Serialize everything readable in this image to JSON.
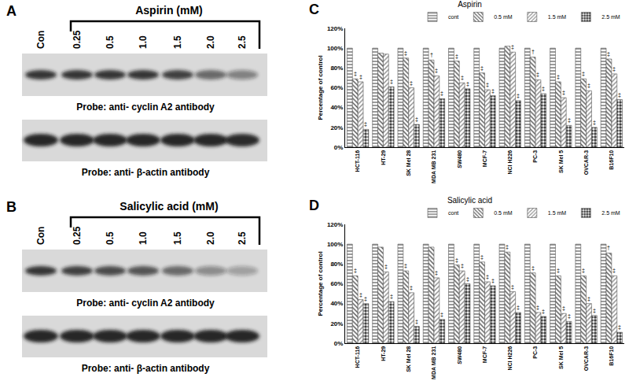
{
  "blots": [
    {
      "panel": "A",
      "title": "Aspirin (mM)",
      "lanes": [
        "Con",
        "0.25",
        "0.5",
        "1.0",
        "1.5",
        "2.0",
        "2.5"
      ],
      "probes": [
        {
          "label": "Probe: anti- cyclin A2 antibody",
          "band_intensity": [
            0.85,
            0.85,
            0.85,
            0.85,
            0.8,
            0.6,
            0.45
          ]
        },
        {
          "label": "Probe: anti- β-actin antibody",
          "band_intensity": [
            0.95,
            0.95,
            0.95,
            0.95,
            0.95,
            0.95,
            0.9
          ]
        }
      ]
    },
    {
      "panel": "B",
      "title": "Salicylic acid  (mM)",
      "lanes": [
        "Con",
        "0.25",
        "0.5",
        "1.0",
        "1.5",
        "2.0",
        "2.5"
      ],
      "probes": [
        {
          "label": "Probe: anti- cyclin A2 antibody",
          "band_intensity": [
            0.85,
            0.8,
            0.75,
            0.7,
            0.6,
            0.4,
            0.3
          ]
        },
        {
          "label": "Probe: anti- β-actin antibody",
          "band_intensity": [
            0.95,
            0.95,
            0.95,
            0.95,
            0.95,
            0.95,
            0.95
          ]
        }
      ]
    }
  ],
  "chart_data": [
    {
      "panel": "C",
      "type": "bar",
      "title": "Aspirin",
      "y_label": "Percentage of control",
      "legend": "top right",
      "categories": [
        "HCT-116",
        "HT-29",
        "SK Mel 28",
        "MDA MB 231",
        "SW480",
        "MCF-7",
        "NCI H226",
        "PC-3",
        "SK Mel 5",
        "OVCAR-3",
        "B16F10"
      ],
      "ylim": [
        0,
        120
      ],
      "yticks": [
        {
          "value": 0,
          "label": "0%"
        },
        {
          "value": 20,
          "label": "20%"
        },
        {
          "value": 40,
          "label": "40%"
        },
        {
          "value": 60,
          "label": "60%"
        },
        {
          "value": 80,
          "label": "80%"
        },
        {
          "value": 100,
          "label": "100%"
        },
        {
          "value": 120,
          "label": "120%"
        }
      ],
      "series": [
        {
          "name": "cont",
          "color": "#707070",
          "marker": "horizontal",
          "values": [
            100,
            100,
            100,
            100,
            100,
            100,
            100,
            100,
            100,
            100,
            100
          ],
          "annotations": [
            null,
            null,
            null,
            null,
            null,
            null,
            null,
            null,
            null,
            null,
            null
          ]
        },
        {
          "name": "0.5 mM",
          "color": "#505050",
          "marker": "backslash",
          "values": [
            69,
            95,
            90,
            88,
            87,
            75,
            102,
            91,
            66,
            69,
            89
          ],
          "annotations": [
            "‡",
            null,
            "‡",
            "†",
            "‡",
            "‡",
            null,
            "†",
            "‡",
            "‡",
            "‡"
          ]
        },
        {
          "name": "1.5 mM",
          "color": "#8a8a8a",
          "marker": "slash",
          "values": [
            66,
            94,
            60,
            72,
            65,
            58,
            96,
            68,
            50,
            57,
            74
          ],
          "annotations": [
            "‡",
            null,
            "‡",
            "‡",
            "‡",
            "‡",
            "‡",
            "‡",
            "‡",
            "‡",
            "‡"
          ]
        },
        {
          "name": "2.5 mM",
          "color": "#404040",
          "marker": "dots",
          "values": [
            18,
            61,
            23,
            49,
            59,
            52,
            47,
            54,
            22,
            20,
            48
          ],
          "annotations": [
            "‡",
            "‡",
            "‡",
            "‡",
            "‡",
            "‡",
            "‡",
            "‡",
            "‡",
            "‡",
            "‡"
          ]
        }
      ]
    },
    {
      "panel": "D",
      "type": "bar",
      "title": "Salicylic acid",
      "y_label": "Percentage of control",
      "legend": "top right",
      "categories": [
        "HCT-116",
        "HT-29",
        "SK Mel 28",
        "MDA MB 231",
        "SW480",
        "MCF-7",
        "NCI H226",
        "PC-3",
        "SK Mel 5",
        "OVCAR-3",
        "B16F10"
      ],
      "ylim": [
        0,
        120
      ],
      "yticks": [
        {
          "value": 0,
          "label": "0%"
        },
        {
          "value": 20,
          "label": "20%"
        },
        {
          "value": 40,
          "label": "40%"
        },
        {
          "value": 60,
          "label": "60%"
        },
        {
          "value": 80,
          "label": "80%"
        },
        {
          "value": 100,
          "label": "100%"
        },
        {
          "value": 120,
          "label": "120%"
        }
      ],
      "series": [
        {
          "name": "cont",
          "color": "#707070",
          "marker": "horizontal",
          "values": [
            100,
            100,
            100,
            100,
            100,
            100,
            100,
            100,
            100,
            100,
            100
          ],
          "annotations": [
            null,
            null,
            null,
            null,
            null,
            null,
            null,
            null,
            null,
            null,
            null
          ]
        },
        {
          "name": "0.5 mM",
          "color": "#505050",
          "marker": "backslash",
          "values": [
            68,
            97,
            73,
            97,
            79,
            82,
            92,
            71,
            68,
            68,
            91
          ],
          "annotations": [
            "‡",
            null,
            "‡",
            null,
            "‡",
            "‡",
            "‡",
            "‡",
            "‡",
            "‡",
            "†"
          ]
        },
        {
          "name": "1.5 mM",
          "color": "#8a8a8a",
          "marker": "slash",
          "values": [
            44,
            72,
            51,
            66,
            73,
            62,
            52,
            31,
            30,
            40,
            68
          ],
          "annotations": [
            "‡",
            "‡",
            "‡",
            "‡",
            "‡",
            "‡",
            "‡",
            "‡",
            "‡",
            "‡",
            "‡"
          ]
        },
        {
          "name": "2.5 mM",
          "color": "#404040",
          "marker": "dots",
          "values": [
            40,
            42,
            17,
            24,
            60,
            58,
            31,
            27,
            22,
            28,
            11
          ],
          "annotations": [
            "‡",
            "‡",
            "‡",
            "‡",
            "‡",
            "‡",
            "‡",
            "‡",
            "‡",
            "‡",
            "‡"
          ]
        }
      ]
    }
  ]
}
